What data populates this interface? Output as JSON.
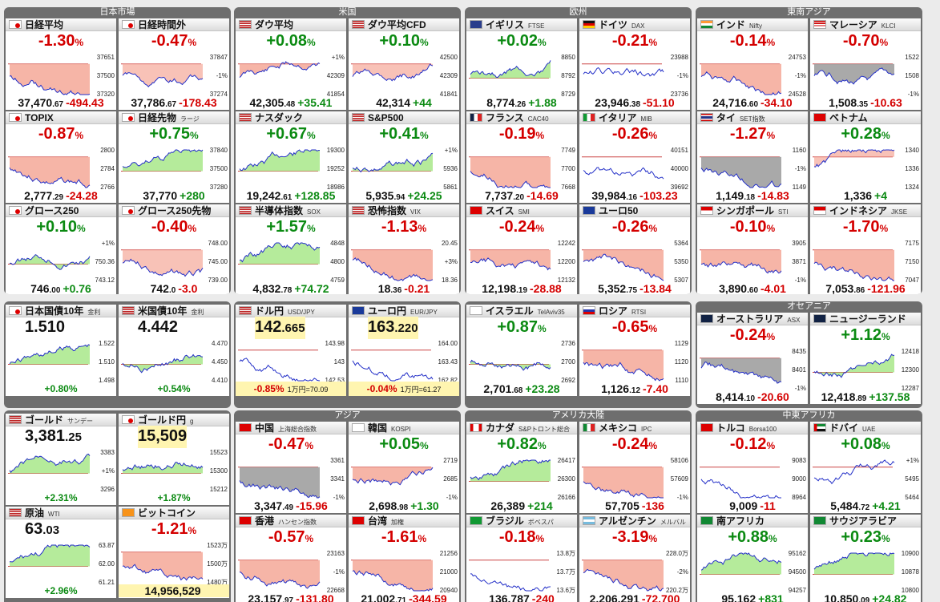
{
  "regions": [
    {
      "name": "日本市場",
      "tiles": [
        {
          "name": "日経平均",
          "sub": "",
          "flag": "jp",
          "pct": "-1.30",
          "dir": "dn",
          "val": "37,470",
          "dec": ".67",
          "chg": "-494.43",
          "fill": "dn",
          "labels": [
            "37651",
            "37500",
            "37320"
          ]
        },
        {
          "name": "日経時間外",
          "sub": "",
          "flag": "jp",
          "pct": "-0.47",
          "dir": "dn",
          "val": "37,786",
          "dec": ".67",
          "chg": "-178.43",
          "fill": "mix",
          "labels": [
            "37847",
            "-1%",
            "37274"
          ]
        },
        {
          "name": "TOPIX",
          "sub": "",
          "flag": "jp",
          "pct": "-0.87",
          "dir": "dn",
          "val": "2,777",
          "dec": ".29",
          "chg": "-24.28",
          "fill": "dn",
          "labels": [
            "2800",
            "2784",
            "2766"
          ]
        },
        {
          "name": "日経先物",
          "sub": "ラージ",
          "flag": "jp",
          "pct": "+0.75",
          "dir": "up",
          "val": "37,770",
          "dec": "",
          "chg": "+280",
          "fill": "up",
          "labels": [
            "37840",
            "37500",
            "37280"
          ]
        },
        {
          "name": "グロース250",
          "sub": "",
          "flag": "jp",
          "pct": "+0.10",
          "dir": "up",
          "val": "746",
          "dec": ".00",
          "chg": "+0.76",
          "fill": "up",
          "labels": [
            "+1%",
            "750.36",
            "743.12"
          ]
        },
        {
          "name": "グロース250先物",
          "sub": "",
          "flag": "jp",
          "pct": "-0.40",
          "dir": "dn",
          "val": "742",
          "dec": ".0",
          "chg": "-3.0",
          "fill": "mix",
          "labels": [
            "748.00",
            "745.00",
            "739.00"
          ]
        }
      ]
    },
    {
      "name": "米国",
      "tiles": [
        {
          "name": "ダウ平均",
          "sub": "",
          "flag": "us",
          "pct": "+0.08",
          "dir": "up",
          "val": "42,305",
          "dec": ".48",
          "chg": "+35.41",
          "fill": "dn",
          "labels": [
            "+1%",
            "42309",
            "41854"
          ]
        },
        {
          "name": "ダウ平均CFD",
          "sub": "",
          "flag": "us",
          "pct": "+0.10",
          "dir": "up",
          "val": "42,314",
          "dec": "",
          "chg": "+44",
          "fill": "mix",
          "labels": [
            "42500",
            "42309",
            "41841"
          ]
        },
        {
          "name": "ナスダック",
          "sub": "",
          "flag": "us",
          "pct": "+0.67",
          "dir": "up",
          "val": "19,242",
          "dec": ".61",
          "chg": "+128.85",
          "fill": "up",
          "labels": [
            "19300",
            "19252",
            "18986"
          ]
        },
        {
          "name": "S&P500",
          "sub": "",
          "flag": "us",
          "pct": "+0.41",
          "dir": "up",
          "val": "5,935",
          "dec": ".94",
          "chg": "+24.25",
          "fill": "up",
          "labels": [
            "+1%",
            "5936",
            "5861"
          ]
        },
        {
          "name": "半導体指数",
          "sub": "SOX",
          "flag": "us",
          "pct": "+1.57",
          "dir": "up",
          "val": "4,832",
          "dec": ".78",
          "chg": "+74.72",
          "fill": "up",
          "labels": [
            "4848",
            "4800",
            "4759"
          ]
        },
        {
          "name": "恐怖指数",
          "sub": "VIX",
          "flag": "us",
          "pct": "-1.13",
          "dir": "dn",
          "val": "18",
          "dec": ".36",
          "chg": "-0.21",
          "fill": "dn",
          "labels": [
            "20.45",
            "+3%",
            "18.36"
          ]
        }
      ]
    },
    {
      "name": "欧州",
      "tiles": [
        {
          "name": "イギリス",
          "sub": "FTSE",
          "flag": "gb",
          "pct": "+0.02",
          "dir": "up",
          "val": "8,774",
          "dec": ".26",
          "chg": "+1.88",
          "fill": "up",
          "labels": [
            "8850",
            "8792",
            "8729"
          ]
        },
        {
          "name": "ドイツ",
          "sub": "DAX",
          "flag": "de",
          "pct": "-0.21",
          "dir": "dn",
          "val": "23,946",
          "dec": ".38",
          "chg": "-51.10",
          "fill": "none",
          "labels": [
            "23988",
            "-1%",
            "23736"
          ]
        },
        {
          "name": "フランス",
          "sub": "CAC40",
          "flag": "fr",
          "pct": "-0.19",
          "dir": "dn",
          "val": "7,737",
          "dec": ".20",
          "chg": "-14.69",
          "fill": "dn",
          "labels": [
            "7749",
            "7700",
            "7668"
          ]
        },
        {
          "name": "イタリア",
          "sub": "MIB",
          "flag": "it",
          "pct": "-0.26",
          "dir": "dn",
          "val": "39,984",
          "dec": ".16",
          "chg": "-103.23",
          "fill": "none",
          "labels": [
            "40151",
            "40000",
            "39692"
          ]
        },
        {
          "name": "スイス",
          "sub": "SMI",
          "flag": "ch",
          "pct": "-0.24",
          "dir": "dn",
          "val": "12,198",
          "dec": ".19",
          "chg": "-28.88",
          "fill": "dn",
          "labels": [
            "12242",
            "12200",
            "12132"
          ]
        },
        {
          "name": "ユーロ50",
          "sub": "",
          "flag": "eu",
          "pct": "-0.26",
          "dir": "dn",
          "val": "5,352",
          "dec": ".75",
          "chg": "-13.84",
          "fill": "dn",
          "labels": [
            "5364",
            "5350",
            "5307"
          ]
        }
      ]
    },
    {
      "name": "東南アジア",
      "tiles": [
        {
          "name": "インド",
          "sub": "Nifty",
          "flag": "in",
          "pct": "-0.14",
          "dir": "dn",
          "val": "24,716",
          "dec": ".60",
          "chg": "-34.10",
          "fill": "dn",
          "labels": [
            "24753",
            "-1%",
            "24528"
          ]
        },
        {
          "name": "マレーシア",
          "sub": "KLCI",
          "flag": "my",
          "pct": "-0.70",
          "dir": "dn",
          "val": "1,508",
          "dec": ".35",
          "chg": "-10.63",
          "fill": "gray",
          "labels": [
            "1522",
            "1508",
            "-1%"
          ]
        },
        {
          "name": "タイ",
          "sub": "SET指数",
          "flag": "th",
          "pct": "-1.27",
          "dir": "dn",
          "val": "1,149",
          "dec": ".18",
          "chg": "-14.83",
          "fill": "gray",
          "labels": [
            "1160",
            "-1%",
            "1149"
          ]
        },
        {
          "name": "ベトナム",
          "sub": "",
          "flag": "vn",
          "pct": "+0.28",
          "dir": "up",
          "val": "1,336",
          "dec": "",
          "chg": "+4",
          "fill": "mix",
          "labels": [
            "1340",
            "1336",
            "1324"
          ]
        },
        {
          "name": "シンガポール",
          "sub": "STI",
          "flag": "sg",
          "pct": "-0.10",
          "dir": "dn",
          "val": "3,890",
          "dec": ".60",
          "chg": "-4.01",
          "fill": "dn",
          "labels": [
            "3905",
            "3871",
            "-1%"
          ]
        },
        {
          "name": "インドネシア",
          "sub": "JKSE",
          "flag": "id",
          "pct": "-1.70",
          "dir": "dn",
          "val": "7,053",
          "dec": ".86",
          "chg": "-121.96",
          "fill": "dn",
          "labels": [
            "7175",
            "7150",
            "7047"
          ]
        }
      ]
    },
    {
      "name": "",
      "tiles": [
        {
          "name": "日本国債10年",
          "sub": "金利",
          "flag": "jp",
          "big": "1.510",
          "bigdec": "",
          "chg": "+0.80%",
          "dir": "up",
          "fill": "up",
          "labels": [
            "1.522",
            "1.510",
            "1.498"
          ]
        },
        {
          "name": "米国債10年",
          "sub": "金利",
          "flag": "us",
          "big": "4.442",
          "bigdec": "",
          "chg": "+0.54%",
          "dir": "up",
          "fill": "up",
          "labels": [
            "4.470",
            "4.450",
            "4.410"
          ]
        }
      ]
    },
    {
      "name": "",
      "tiles": [
        {
          "name": "ドル円",
          "sub": "USD/JPY",
          "flag": "us",
          "big": "142",
          "bigdec": ".665",
          "chg": "-0.85%",
          "note": "1万円=70.09",
          "dir": "dn",
          "fill": "none",
          "hl": true,
          "labels": [
            "143.98",
            "143",
            "142.53"
          ]
        },
        {
          "name": "ユーロ円",
          "sub": "EUR/JPY",
          "flag": "eu",
          "big": "163",
          "bigdec": ".220",
          "chg": "-0.04%",
          "note": "1万円=61.27",
          "dir": "dn",
          "fill": "none",
          "hl": true,
          "labels": [
            "164.00",
            "163.43",
            "162.82"
          ]
        }
      ]
    },
    {
      "name": "",
      "tiles": [
        {
          "name": "イスラエル",
          "sub": "TelAviv35",
          "flag": "il",
          "pct": "+0.87",
          "dir": "up",
          "val": "2,701",
          "dec": ".68",
          "chg": "+23.28",
          "fill": "up",
          "labels": [
            "2736",
            "2700",
            "2692"
          ]
        },
        {
          "name": "ロシア",
          "sub": "RTSI",
          "flag": "ru",
          "pct": "-0.65",
          "dir": "dn",
          "val": "1,126",
          "dec": ".12",
          "chg": "-7.40",
          "fill": "dn",
          "labels": [
            "1129",
            "1120",
            "1110"
          ]
        }
      ]
    },
    {
      "name": "オセアニア",
      "tiles": [
        {
          "name": "オーストラリア",
          "sub": "ASX",
          "flag": "au",
          "pct": "-0.24",
          "dir": "dn",
          "val": "8,414",
          "dec": ".10",
          "chg": "-20.60",
          "fill": "gray",
          "labels": [
            "8435",
            "8401",
            "-1%"
          ]
        },
        {
          "name": "ニュージーランド",
          "sub": "",
          "flag": "nz",
          "pct": "+1.12",
          "dir": "up",
          "val": "12,418",
          "dec": ".89",
          "chg": "+137.58",
          "fill": "up",
          "labels": [
            "12418",
            "12300",
            "12287"
          ]
        }
      ]
    },
    {
      "name": "",
      "tiles": [
        {
          "name": "ゴールド",
          "sub": "サンデー",
          "flag": "us",
          "big": "3,381",
          "bigdec": ".25",
          "chg": "+2.31%",
          "dir": "up",
          "fill": "up",
          "labels": [
            "3383",
            "+1%",
            "3296"
          ]
        },
        {
          "name": "ゴールド円",
          "sub": "g",
          "flag": "jp",
          "big": "15,509",
          "bigdec": "",
          "chg": "+1.87%",
          "dir": "up",
          "fill": "up",
          "hl": true,
          "labels": [
            "15523",
            "15300",
            "15212"
          ]
        },
        {
          "name": "原油",
          "sub": "WTI",
          "flag": "us",
          "big": "63",
          "bigdec": ".03",
          "chg": "+2.96%",
          "dir": "up",
          "fill": "up",
          "labels": [
            "63.87",
            "62.00",
            "61.21"
          ]
        },
        {
          "name": "ビットコイン",
          "sub": "",
          "flag": "btc",
          "pct": "-1.21",
          "dir": "dn",
          "val": "14,956,529",
          "dec": "",
          "chg": "",
          "fill": "dn",
          "hl": true,
          "labels": [
            "1523万",
            "1500万",
            "1480万"
          ]
        }
      ]
    },
    {
      "name": "アジア",
      "tiles": [
        {
          "name": "中国",
          "sub": "上海総合指数",
          "flag": "cn",
          "pct": "-0.47",
          "dir": "dn",
          "val": "3,347",
          "dec": ".49",
          "chg": "-15.96",
          "fill": "gray",
          "labels": [
            "3361",
            "3341",
            "-1%"
          ]
        },
        {
          "name": "韓国",
          "sub": "KOSPI",
          "flag": "kr",
          "pct": "+0.05",
          "dir": "up",
          "val": "2,698",
          "dec": ".98",
          "chg": "+1.30",
          "fill": "dn",
          "labels": [
            "2719",
            "2685",
            "-1%"
          ]
        },
        {
          "name": "香港",
          "sub": "ハンセン指数",
          "flag": "hk",
          "pct": "-0.57",
          "dir": "dn",
          "val": "23,157",
          "dec": ".97",
          "chg": "-131.80",
          "fill": "dn",
          "labels": [
            "23163",
            "-1%",
            "22668"
          ]
        },
        {
          "name": "台湾",
          "sub": "加権",
          "flag": "tw",
          "pct": "-1.61",
          "dir": "dn",
          "val": "21,002",
          "dec": ".71",
          "chg": "-344.59",
          "fill": "dn",
          "labels": [
            "21256",
            "21000",
            "20940"
          ]
        }
      ]
    },
    {
      "name": "アメリカ大陸",
      "tiles": [
        {
          "name": "カナダ",
          "sub": "S&Pトロント総合",
          "flag": "ca",
          "pct": "+0.82",
          "dir": "up",
          "val": "26,389",
          "dec": "",
          "chg": "+214",
          "fill": "up",
          "labels": [
            "26417",
            "26300",
            "26166"
          ]
        },
        {
          "name": "メキシコ",
          "sub": "IPC",
          "flag": "mx",
          "pct": "-0.24",
          "dir": "dn",
          "val": "57,705",
          "dec": "",
          "chg": "-136",
          "fill": "dn",
          "labels": [
            "58106",
            "57609",
            "-1%"
          ]
        },
        {
          "name": "ブラジル",
          "sub": "ボベスパ",
          "flag": "br",
          "pct": "-0.18",
          "dir": "dn",
          "val": "136,787",
          "dec": "",
          "chg": "-240",
          "fill": "none",
          "labels": [
            "13.8万",
            "13.7万",
            "13.6万"
          ]
        },
        {
          "name": "アルゼンチン",
          "sub": "メルバル",
          "flag": "ar",
          "pct": "-3.19",
          "dir": "dn",
          "val": "2,206,291",
          "dec": "",
          "chg": "-72,700",
          "fill": "dn",
          "labels": [
            "228.0万",
            "-2%",
            "220.2万"
          ]
        }
      ]
    },
    {
      "name": "中東アフリカ",
      "tiles": [
        {
          "name": "トルコ",
          "sub": "Borsa100",
          "flag": "tr",
          "pct": "-0.12",
          "dir": "dn",
          "val": "9,009",
          "dec": "",
          "chg": "-11",
          "fill": "none",
          "labels": [
            "9083",
            "9000",
            "8964"
          ]
        },
        {
          "name": "ドバイ",
          "sub": "UAE",
          "flag": "ae",
          "pct": "+0.08",
          "dir": "up",
          "val": "5,484",
          "dec": ".72",
          "chg": "+4.21",
          "fill": "none",
          "labels": [
            "+1%",
            "5495",
            "5464"
          ]
        },
        {
          "name": "南アフリカ",
          "sub": "",
          "flag": "za",
          "pct": "+0.88",
          "dir": "up",
          "val": "95,162",
          "dec": "",
          "chg": "+831",
          "fill": "up",
          "labels": [
            "95162",
            "94500",
            "94257"
          ]
        },
        {
          "name": "サウジアラビア",
          "sub": "",
          "flag": "sa",
          "pct": "+0.23",
          "dir": "up",
          "val": "10,850",
          "dec": ".09",
          "chg": "+24.82",
          "fill": "up",
          "labels": [
            "10900",
            "10878",
            "10800"
          ]
        }
      ]
    }
  ],
  "colors": {
    "up": "#0b8a12",
    "down": "#d40000",
    "upFill": "#a8e88a",
    "downFill": "#f5a898",
    "grayFill": "#9a9a9a",
    "line": "#2430c8"
  }
}
